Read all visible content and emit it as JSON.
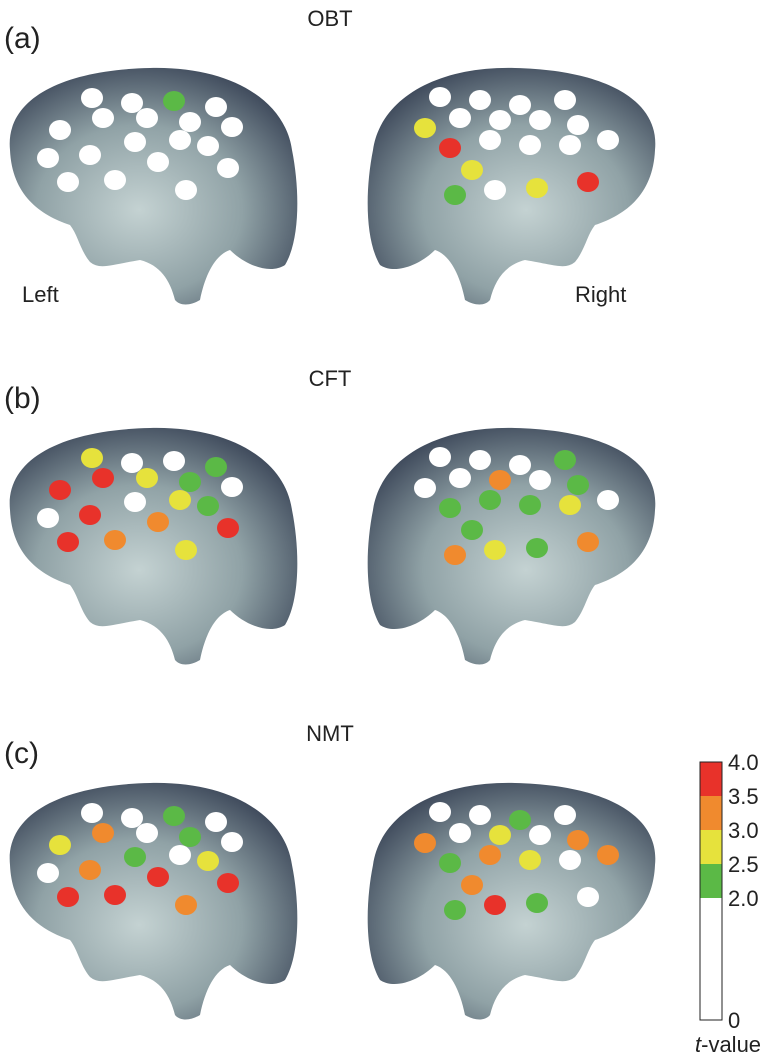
{
  "panels": [
    {
      "label": "(a)",
      "title": "OBT",
      "left_label": "Left",
      "right_label": "Right"
    },
    {
      "label": "(b)",
      "title": "CFT"
    },
    {
      "label": "(c)",
      "title": "NMT"
    }
  ],
  "colorbar": {
    "ticks": [
      "4.0",
      "3.5",
      "3.0",
      "2.5",
      "2.0",
      "0"
    ],
    "colors": [
      "#e8322a",
      "#f08a2e",
      "#e6e23c",
      "#5bb946",
      "#ffffff"
    ],
    "label_italic": "t",
    "label_rest": "-value"
  }
}
